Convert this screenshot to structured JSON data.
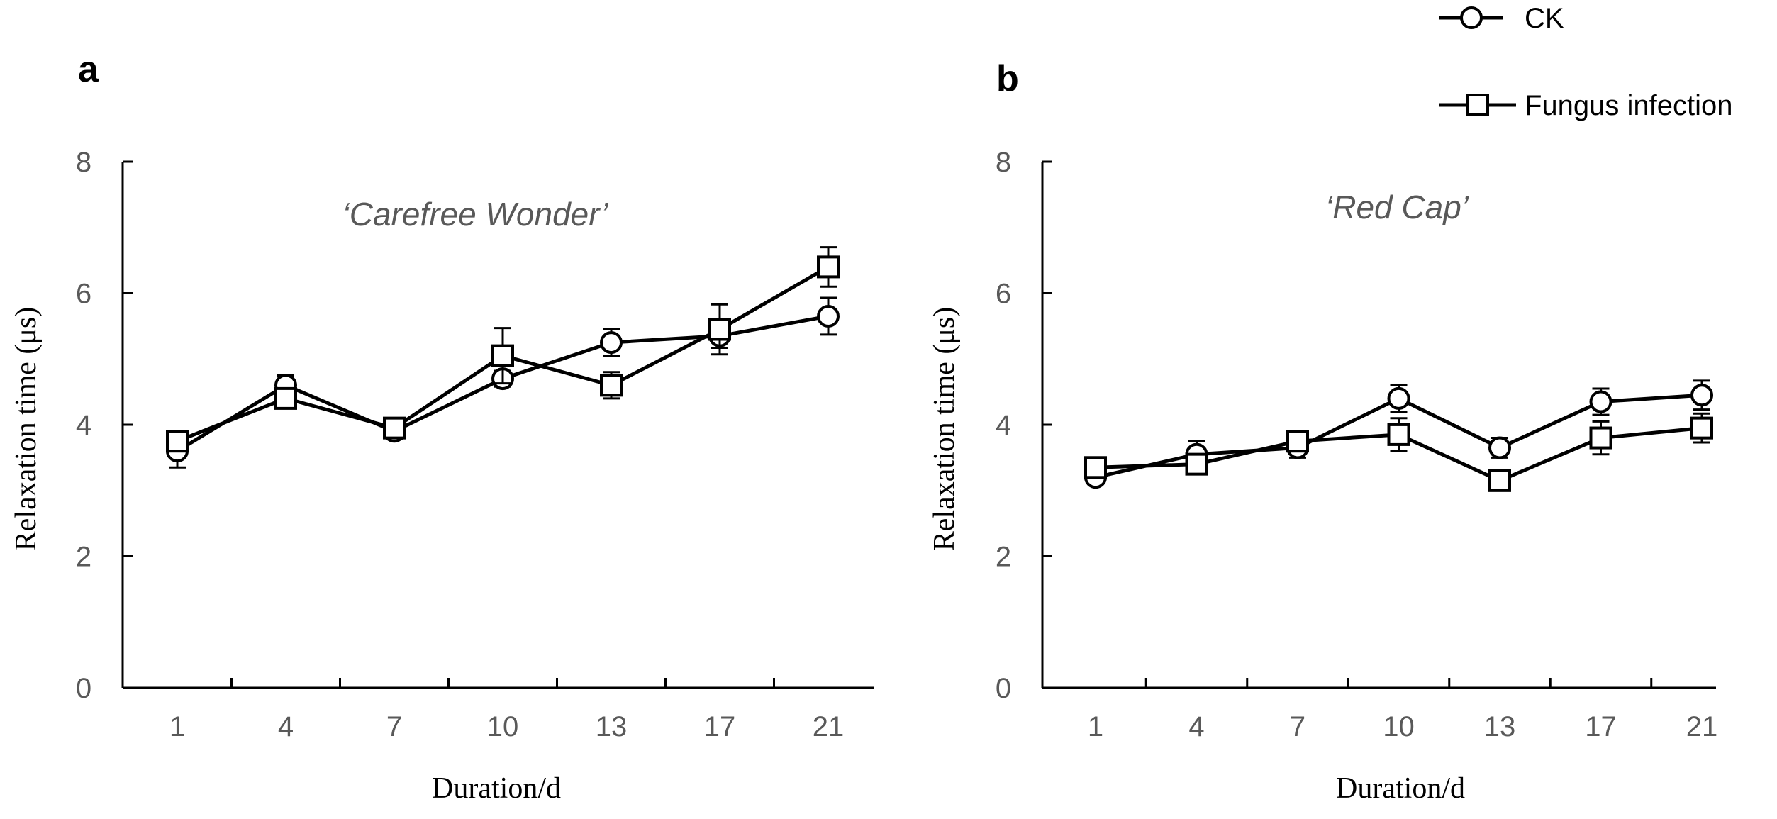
{
  "legend": [
    {
      "label": "CK",
      "marker": "circle"
    },
    {
      "label": "Fungus infection",
      "marker": "square"
    }
  ],
  "chart_data": [
    {
      "type": "line",
      "panel": "a",
      "title": "‘Carefree Wonder’",
      "xlabel": "Duration/d",
      "ylabel": "Relaxation time (μs)",
      "categories": [
        "1",
        "4",
        "7",
        "10",
        "13",
        "17",
        "21"
      ],
      "ylim": [
        0,
        8
      ],
      "yticks": [
        "0",
        "2",
        "4",
        "6",
        "8"
      ],
      "series": [
        {
          "name": "CK",
          "marker": "circle",
          "values": [
            3.6,
            4.6,
            3.9,
            4.7,
            5.25,
            5.35,
            5.65
          ],
          "errors": [
            0.25,
            0.15,
            0.12,
            0.12,
            0.2,
            0.18,
            0.28
          ]
        },
        {
          "name": "Fungus infection",
          "marker": "square",
          "values": [
            3.75,
            4.4,
            3.95,
            5.05,
            4.6,
            5.45,
            6.4
          ],
          "errors": [
            0.1,
            0.12,
            0.1,
            0.42,
            0.2,
            0.38,
            0.3
          ]
        }
      ]
    },
    {
      "type": "line",
      "panel": "b",
      "title": "‘Red Cap’",
      "xlabel": "Duration/d",
      "ylabel": "Relaxation time (μs)",
      "categories": [
        "1",
        "4",
        "7",
        "10",
        "13",
        "17",
        "21"
      ],
      "ylim": [
        0,
        8
      ],
      "yticks": [
        "0",
        "2",
        "4",
        "6",
        "8"
      ],
      "series": [
        {
          "name": "CK",
          "marker": "circle",
          "values": [
            3.2,
            3.55,
            3.65,
            4.4,
            3.65,
            4.35,
            4.45
          ],
          "errors": [
            0.1,
            0.2,
            0.15,
            0.2,
            0.15,
            0.2,
            0.22
          ]
        },
        {
          "name": "Fungus infection",
          "marker": "square",
          "values": [
            3.35,
            3.4,
            3.75,
            3.85,
            3.15,
            3.8,
            3.95
          ],
          "errors": [
            0.1,
            0.1,
            0.1,
            0.25,
            0.1,
            0.25,
            0.22
          ]
        }
      ]
    }
  ]
}
